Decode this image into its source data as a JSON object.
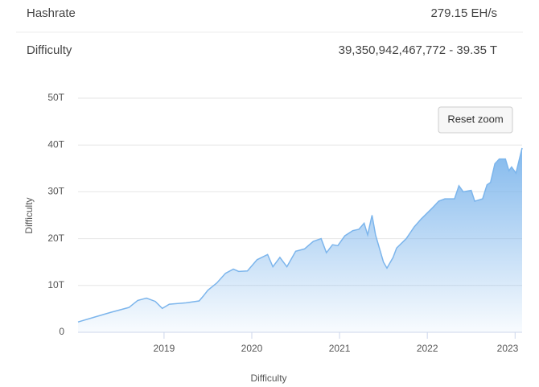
{
  "stats": [
    {
      "label": "Hashrate",
      "value": "279.15 EH/s"
    },
    {
      "label": "Difficulty",
      "value": "39,350,942,467,772 - 39.35 T"
    }
  ],
  "reset_zoom": "Reset zoom",
  "chart_data": {
    "type": "area",
    "x_label": "Difficulty",
    "y_label": "Difficulty",
    "series": [
      {
        "name": "Difficulty",
        "color": "#7cb5ec",
        "x": [
          2018.02,
          2018.2,
          2018.4,
          2018.6,
          2018.7,
          2018.8,
          2018.9,
          2018.98,
          2019.06,
          2019.25,
          2019.4,
          2019.45,
          2019.5,
          2019.6,
          2019.7,
          2019.79,
          2019.85,
          2019.95,
          2020.06,
          2020.18,
          2020.24,
          2020.32,
          2020.4,
          2020.5,
          2020.6,
          2020.7,
          2020.79,
          2020.85,
          2020.92,
          2020.98,
          2021.06,
          2021.15,
          2021.22,
          2021.28,
          2021.32,
          2021.37,
          2021.41,
          2021.5,
          2021.54,
          2021.61,
          2021.65,
          2021.76,
          2021.85,
          2021.93,
          2022.06,
          2022.13,
          2022.2,
          2022.31,
          2022.36,
          2022.41,
          2022.5,
          2022.54,
          2022.63,
          2022.68,
          2022.72,
          2022.77,
          2022.82,
          2022.89,
          2022.93,
          2022.96,
          2023.01,
          2023.08
        ],
        "values": [
          2.2,
          3.2,
          4.3,
          5.3,
          6.8,
          7.3,
          6.6,
          5.1,
          6.0,
          6.3,
          6.7,
          7.8,
          9.0,
          10.5,
          12.6,
          13.5,
          13.0,
          13.1,
          15.5,
          16.6,
          14.0,
          16.0,
          14.0,
          17.3,
          17.8,
          19.4,
          20.0,
          17.0,
          18.7,
          18.5,
          20.6,
          21.7,
          22.0,
          23.3,
          20.8,
          25.0,
          20.8,
          15.0,
          13.7,
          16.0,
          18.0,
          20.0,
          22.5,
          24.2,
          26.6,
          28.0,
          28.5,
          28.5,
          31.3,
          30.0,
          30.3,
          28.0,
          28.5,
          31.5,
          32.0,
          36.0,
          37.0,
          37.0,
          34.5,
          35.3,
          34.0,
          39.35
        ]
      }
    ],
    "xlim": [
      2018.02,
      2023.08
    ],
    "xticks": [
      2019,
      2020,
      2021,
      2022,
      2023
    ],
    "ylim": [
      0,
      50
    ],
    "yticks": [
      0,
      {
        "value": 10,
        "label": "10T"
      },
      {
        "value": 20,
        "label": "20T"
      },
      {
        "value": 30,
        "label": "30T"
      },
      {
        "value": 40,
        "label": "40T"
      },
      {
        "value": 50,
        "label": "50T"
      }
    ],
    "grid": true
  }
}
